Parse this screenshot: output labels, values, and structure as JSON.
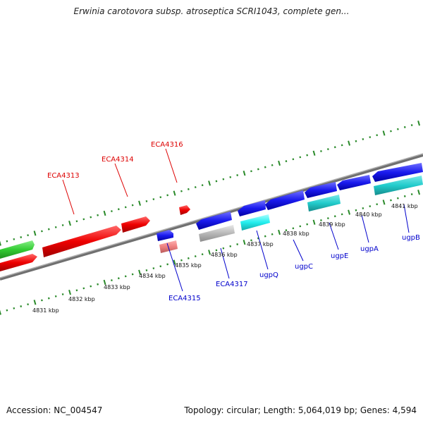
{
  "header": {
    "title": "Erwinia carotovora subsp. atroseptica SCRI1043, complete gen..."
  },
  "footer": {
    "accession": "Accession: NC_004547",
    "summary": "Topology: circular; Length: 5,064,019 bp; Genes: 4,594"
  },
  "colors": {
    "forward_gene": "#ee0000",
    "reverse_gene": "#1a1aee",
    "other_gene": "#33cc33",
    "pseudo_gene": "#b8b8b8",
    "rna_cyan": "#22cccc",
    "light_red": "#ee8080",
    "tick_green": "#2a8a2a",
    "backbone": "#888888"
  },
  "top_labels": [
    "ECA4313",
    "ECA4314",
    "ECA4316"
  ],
  "bottom_labels": [
    "ECA4315",
    "ECA4317",
    "ugpQ",
    "ugpC",
    "ugpE",
    "ugpA",
    "ugpB"
  ],
  "kbp_labels": [
    "4831 kbp",
    "4832 kbp",
    "4833 kbp",
    "4834 kbp",
    "4835 kbp",
    "4836 kbp",
    "4837 kbp",
    "4838 kbp",
    "4839 kbp",
    "4840 kbp",
    "4841 kbp"
  ]
}
